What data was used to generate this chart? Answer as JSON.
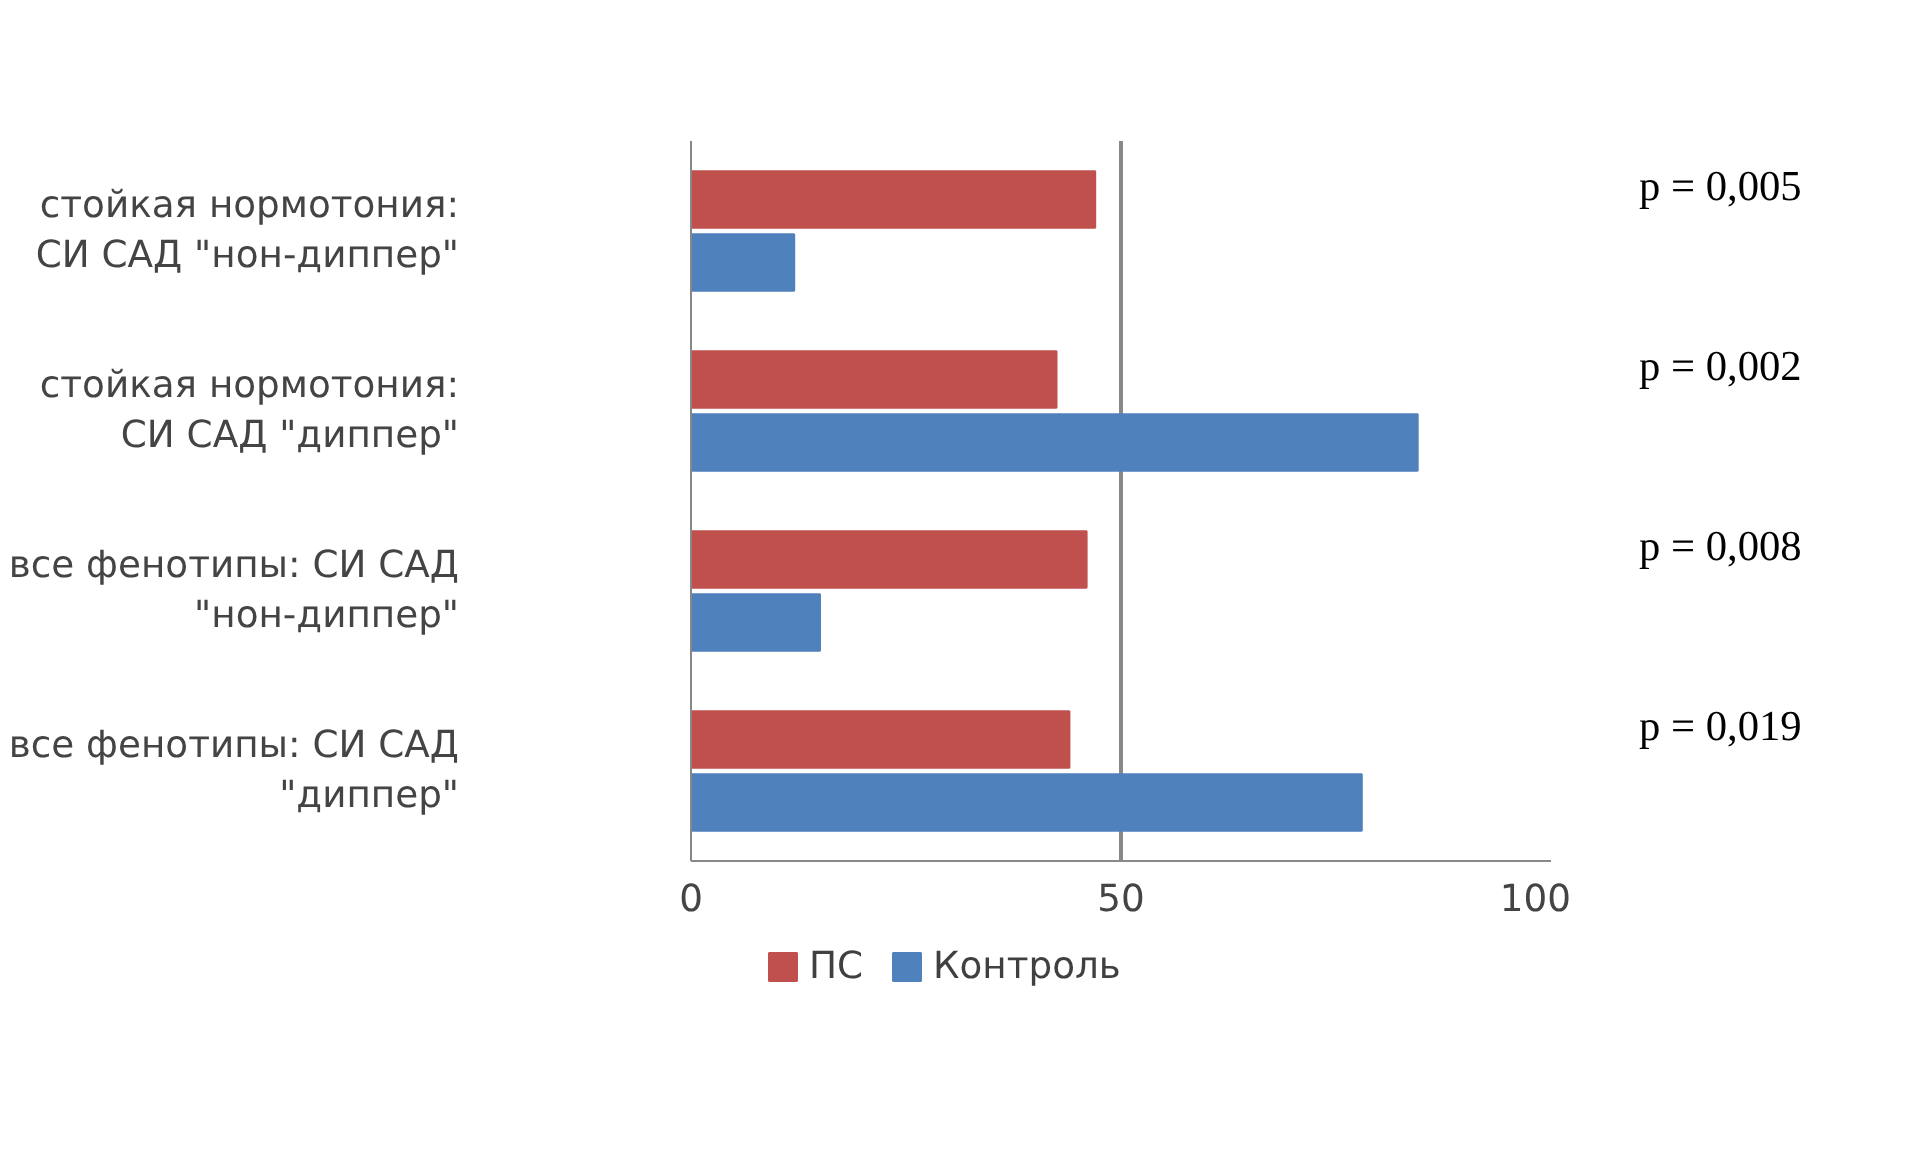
{
  "chart_data": {
    "type": "bar",
    "orientation": "horizontal",
    "categories": [
      "стойкая нормотония: СИ САД \"нон-диппер\"",
      "стойкая нормотония: СИ САД \"диппер\"",
      "все фенотипы: СИ САД \"нон-диппер\"",
      "все фенотипы: СИ САД \"диппер\""
    ],
    "series": [
      {
        "name": "ПС",
        "color": "#c0504d",
        "values": [
          47,
          42.5,
          46,
          44
        ]
      },
      {
        "name": "Контроль",
        "color": "#4f81bd",
        "values": [
          12,
          84.5,
          15,
          78
        ]
      }
    ],
    "xlim": [
      0,
      100
    ],
    "xticks": [
      0,
      50,
      100
    ],
    "grid": "x",
    "legend": "bottom",
    "annotations": [
      "p = 0,005",
      "p = 0,002",
      "p = 0,008",
      "p = 0,019"
    ]
  }
}
